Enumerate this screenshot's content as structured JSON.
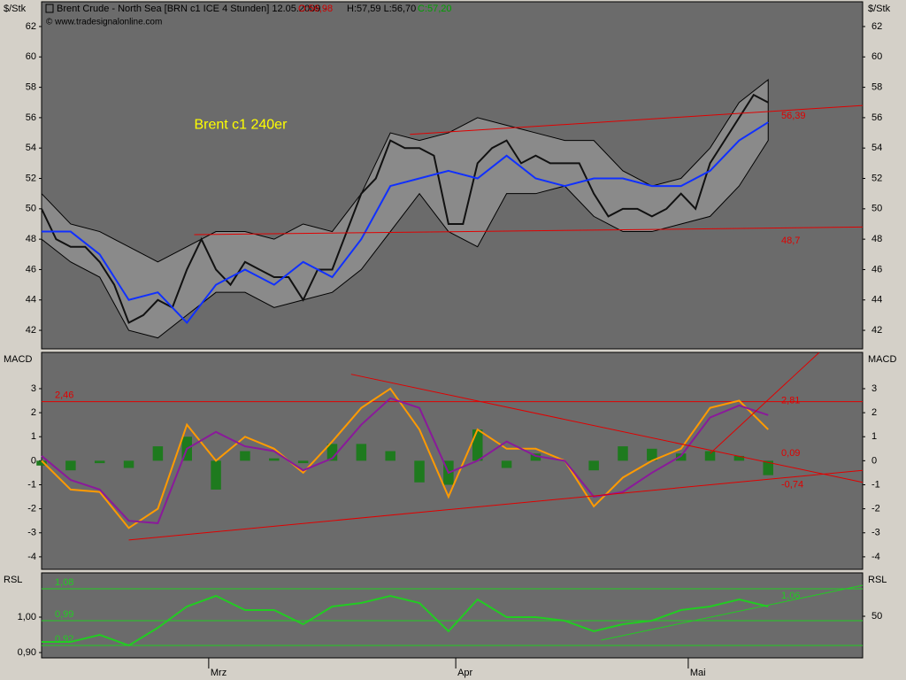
{
  "header": {
    "title": "Brent Crude - North Sea [BRN c1 ICE  4 Stunden] 12.05.2009 -",
    "open": "O:56,98",
    "high_low": "H:57,59 L:56,70",
    "close": "C:57,20"
  },
  "chart_data": [
    {
      "type": "line",
      "source": "© www.tradesignalonline.com",
      "ylabel": "$/Stk",
      "xlim": [
        0,
        113
      ],
      "ylim": [
        40.78,
        63.63
      ],
      "yticks": [
        42,
        44,
        46,
        48,
        50,
        52,
        54,
        56,
        58,
        60,
        62
      ],
      "x": [
        0,
        4,
        8,
        12,
        16,
        20,
        24,
        28,
        32,
        36,
        40,
        44,
        48,
        52,
        56,
        60,
        64,
        68,
        72,
        76,
        80,
        84,
        88,
        92,
        96,
        100
      ],
      "series": [
        {
          "kind": "band",
          "color": "#8a8a8a",
          "upper": [
            51,
            49,
            48.5,
            47.5,
            46.5,
            47.5,
            48.5,
            48.5,
            48,
            49,
            48.5,
            51,
            55,
            54.5,
            55,
            56,
            55.5,
            55,
            54.5,
            54.5,
            52.5,
            51.5,
            52,
            54,
            57,
            58.5
          ],
          "lower": [
            48,
            46.5,
            45.5,
            42,
            41.5,
            43,
            44.5,
            44.5,
            43.5,
            44,
            44.5,
            46,
            48.5,
            51,
            48.5,
            47.5,
            51,
            51,
            51.5,
            49.5,
            48.5,
            48.5,
            49,
            49.5,
            51.5,
            54.5
          ]
        },
        {
          "kind": "line",
          "color": "#111111",
          "x": [
            0,
            2,
            4,
            6,
            8,
            10,
            12,
            14,
            16,
            18,
            20,
            22,
            24,
            26,
            28,
            30,
            32,
            34,
            36,
            38,
            40,
            42,
            44,
            46,
            48,
            50,
            52,
            54,
            56,
            58,
            60,
            62,
            64,
            66,
            68,
            70,
            72,
            74,
            76,
            78,
            80,
            82,
            84,
            86,
            88,
            90,
            92,
            94,
            96,
            98,
            100
          ],
          "values": [
            50,
            48,
            47.5,
            47.5,
            46.5,
            45,
            42.5,
            43,
            44,
            43.5,
            46,
            48,
            46,
            45,
            46.5,
            46,
            45.5,
            45.5,
            44,
            46,
            46,
            48.5,
            51,
            52,
            54.5,
            54,
            54,
            53.5,
            49,
            49,
            53,
            54,
            54.5,
            53,
            53.5,
            53,
            53,
            53,
            51,
            49.5,
            50,
            50,
            49.5,
            50,
            51,
            50,
            53,
            54.5,
            56,
            57.5,
            57
          ]
        },
        {
          "kind": "line",
          "color": "#1030ff",
          "values": [
            48.5,
            48.5,
            47,
            44,
            44.5,
            42.5,
            45,
            46,
            45,
            46.5,
            45.5,
            48,
            51.5,
            52,
            52.5,
            52,
            53.5,
            52,
            51.5,
            52,
            52,
            51.5,
            51.5,
            52.5,
            54.5,
            55.7
          ]
        }
      ],
      "trendlines": [
        {
          "color": "#e00000",
          "x": [
            21,
            113
          ],
          "y": [
            48.3,
            48.8
          ]
        },
        {
          "color": "#e00000",
          "x": [
            50.7,
            113
          ],
          "y": [
            54.9,
            56.8
          ]
        }
      ],
      "annotations": [
        {
          "text": "Brent c1 240er",
          "x": 21,
          "y": 55.5,
          "color": "#ffff00"
        },
        {
          "text": "56,39",
          "x": 101.8,
          "y": 56.1,
          "color": "#e00000"
        },
        {
          "text": "48,7",
          "x": 101.8,
          "y": 47.9,
          "color": "#e00000"
        }
      ]
    },
    {
      "type": "line",
      "ylabel": "MACD",
      "xlim": [
        0,
        113
      ],
      "ylim": [
        -4.52,
        4.51
      ],
      "yticks": [
        3,
        2,
        1,
        0,
        -1,
        -2,
        -3,
        -4
      ],
      "x": [
        0,
        4,
        8,
        12,
        16,
        20,
        24,
        28,
        32,
        36,
        40,
        44,
        48,
        52,
        56,
        60,
        64,
        68,
        72,
        76,
        80,
        84,
        88,
        92,
        96,
        100
      ],
      "series": [
        {
          "kind": "bar",
          "color": "#1e7a1e",
          "values": [
            -0.2,
            -0.4,
            -0.1,
            -0.3,
            0.6,
            1.0,
            -1.2,
            0.4,
            0.1,
            -0.1,
            0.7,
            0.7,
            0.4,
            -0.9,
            -1.0,
            1.3,
            -0.3,
            0.3,
            0,
            -0.4,
            0.6,
            0.5,
            0.3,
            0.4,
            0.2,
            -0.6
          ]
        },
        {
          "kind": "line",
          "color": "#ff9a00",
          "values": [
            0,
            -1.2,
            -1.3,
            -2.8,
            -2,
            1.5,
            0,
            1,
            0.5,
            -0.5,
            0.8,
            2.2,
            3,
            1.3,
            -1.5,
            1.3,
            0.5,
            0.5,
            0,
            -1.9,
            -0.7,
            0,
            0.5,
            2.2,
            2.5,
            1.3
          ]
        },
        {
          "kind": "line",
          "color": "#8a1a9a",
          "values": [
            0.2,
            -0.8,
            -1.2,
            -2.5,
            -2.6,
            0.5,
            1.2,
            0.6,
            0.4,
            -0.4,
            0.1,
            1.5,
            2.6,
            2.2,
            -0.5,
            0,
            0.8,
            0.2,
            0,
            -1.5,
            -1.3,
            -0.5,
            0.2,
            1.8,
            2.3,
            1.9
          ]
        }
      ],
      "levels": [
        {
          "value": 2.46,
          "label": "2,46",
          "color": "#e00000"
        }
      ],
      "trendlines": [
        {
          "color": "#e00000",
          "x": [
            42.6,
            113
          ],
          "y": [
            3.6,
            -0.9
          ]
        },
        {
          "color": "#e00000",
          "x": [
            12,
            113
          ],
          "y": [
            -3.3,
            -0.4
          ]
        },
        {
          "color": "#e00000",
          "x": [
            92,
            107
          ],
          "y": [
            0.3,
            4.5
          ]
        }
      ],
      "annotations": [
        {
          "text": "2,81",
          "x": 101.8,
          "y": 2.5,
          "color": "#e00000"
        },
        {
          "text": "0,09",
          "x": 101.8,
          "y": 0.3,
          "color": "#e00000"
        },
        {
          "text": "-0,74",
          "x": 101.8,
          "y": -1.0,
          "color": "#e00000"
        }
      ]
    },
    {
      "type": "line",
      "ylabel": "RSL",
      "xlim": [
        0,
        113
      ],
      "ylim": [
        0.885,
        1.125
      ],
      "yticks": [
        {
          "value": 1,
          "label": "1,00"
        },
        {
          "value": 0.9,
          "label": "0,90"
        }
      ],
      "y2lim": [
        38.5,
        62
      ],
      "y2ticks": [
        50
      ],
      "xticks": [
        {
          "value": 23,
          "label": "Mrz"
        },
        {
          "value": 57,
          "label": "Apr"
        },
        {
          "value": 89,
          "label": "Mai"
        }
      ],
      "x": [
        0,
        4,
        8,
        12,
        16,
        20,
        24,
        28,
        32,
        36,
        40,
        44,
        48,
        52,
        56,
        60,
        64,
        68,
        72,
        76,
        80,
        84,
        88,
        92,
        96,
        100
      ],
      "series": [
        {
          "kind": "line",
          "color": "#22cc22",
          "values": [
            0.93,
            0.93,
            0.95,
            0.92,
            0.97,
            1.03,
            1.06,
            1.02,
            1.02,
            0.98,
            1.03,
            1.04,
            1.06,
            1.04,
            0.96,
            1.05,
            1.0,
            1.0,
            0.99,
            0.96,
            0.98,
            0.99,
            1.02,
            1.03,
            1.05,
            1.03
          ]
        }
      ],
      "levels": [
        {
          "value": 1.08,
          "label": "1,08",
          "color": "#22cc22"
        },
        {
          "value": 0.99,
          "label": "0,99",
          "color": "#22cc22"
        },
        {
          "value": 0.92,
          "label": "0,92",
          "color": "#22cc22"
        }
      ],
      "trendlines": [
        {
          "color": "#22cc22",
          "x": [
            77,
            113
          ],
          "y": [
            0.935,
            1.09
          ]
        }
      ],
      "annotations": [
        {
          "text": "1,06",
          "x": 101.8,
          "y": 1.06,
          "color": "#22cc22"
        }
      ]
    }
  ]
}
